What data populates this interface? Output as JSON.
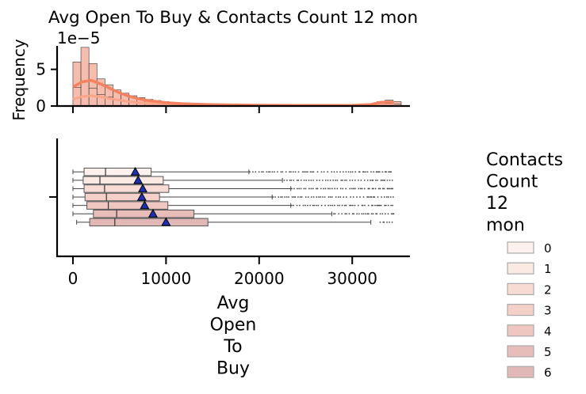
{
  "chart_data": {
    "type": "boxplot_with_histogram",
    "title": "Avg Open To Buy & Contacts Count 12 mon",
    "hist_ylabel": "Frequency",
    "hist_scale_label": "1e−5",
    "hist_yticks": [
      "0",
      "5"
    ],
    "hist_ytick_values": [
      0,
      5
    ],
    "hist_ylim": [
      0,
      8.2
    ],
    "xlabel_lines": [
      "Avg",
      "Open",
      "To",
      "Buy"
    ],
    "xlim": [
      -1700,
      36200
    ],
    "xticks": [
      0,
      10000,
      20000,
      30000
    ],
    "xtick_labels": [
      "0",
      "10000",
      "20000",
      "30000"
    ],
    "histogram": {
      "bin_width": 860,
      "total_heights_1e5": [
        6,
        8,
        5.8,
        3.7,
        2.9,
        2.2,
        1.75,
        1.4,
        1.15,
        0.9,
        0.75,
        0.6,
        0.5,
        0.42,
        0.35,
        0.3,
        0.27,
        0.24,
        0.21,
        0.19,
        0.17,
        0.15,
        0.14,
        0.13,
        0.12,
        0.11,
        0.1,
        0.1,
        0.1,
        0.09,
        0.09,
        0.09,
        0.09,
        0.09,
        0.09,
        0.1,
        0.12,
        0.13,
        0.6,
        0.8,
        0.6
      ],
      "kde_total": [
        [
          0,
          2.6
        ],
        [
          1000,
          3.3
        ],
        [
          2000,
          3.5
        ],
        [
          3000,
          3.0
        ],
        [
          4000,
          2.4
        ],
        [
          5000,
          1.8
        ],
        [
          6000,
          1.35
        ],
        [
          7000,
          1.0
        ],
        [
          8000,
          0.75
        ],
        [
          10000,
          0.45
        ],
        [
          12000,
          0.3
        ],
        [
          15000,
          0.18
        ],
        [
          20000,
          0.11
        ],
        [
          25000,
          0.09
        ],
        [
          30000,
          0.1
        ],
        [
          32000,
          0.2
        ],
        [
          33000,
          0.5
        ],
        [
          34000,
          0.55
        ],
        [
          34500,
          0.5
        ]
      ],
      "kde_group": [
        [
          0,
          0.9
        ],
        [
          1000,
          1.3
        ],
        [
          2000,
          1.4
        ],
        [
          3000,
          1.25
        ],
        [
          4000,
          1.0
        ],
        [
          6000,
          0.6
        ],
        [
          8000,
          0.35
        ],
        [
          12000,
          0.15
        ],
        [
          20000,
          0.06
        ],
        [
          30000,
          0.05
        ],
        [
          33000,
          0.15
        ],
        [
          34500,
          0.15
        ]
      ]
    },
    "legend_title": "Contacts Count 12 mon",
    "legend_title_lines": [
      "Contacts",
      "Count",
      "12",
      "mon"
    ],
    "legend_placement": "right",
    "boxes": [
      {
        "name": "0",
        "color": "#fcf1ec",
        "q1": 1200,
        "median": 3500,
        "q3": 8400,
        "whisker_low": 0,
        "whisker_high": 18900,
        "mean": 6700,
        "outlier_range": [
          19000,
          34500
        ]
      },
      {
        "name": "1",
        "color": "#fbe9e3",
        "q1": 1100,
        "median": 2900,
        "q3": 9700,
        "whisker_low": 0,
        "whisker_high": 22500,
        "mean": 7000,
        "outlier_range": [
          22700,
          34500
        ]
      },
      {
        "name": "2",
        "color": "#f8dcd4",
        "q1": 1200,
        "median": 3400,
        "q3": 10300,
        "whisker_low": 0,
        "whisker_high": 23400,
        "mean": 7500,
        "outlier_range": [
          23500,
          34500
        ]
      },
      {
        "name": "3",
        "color": "#f4d0c8",
        "q1": 1300,
        "median": 3600,
        "q3": 9300,
        "whisker_low": 0,
        "whisker_high": 21400,
        "mean": 7400,
        "outlier_range": [
          21500,
          34500
        ]
      },
      {
        "name": "4",
        "color": "#efc6c0",
        "q1": 1500,
        "median": 3800,
        "q3": 10200,
        "whisker_low": 0,
        "whisker_high": 23400,
        "mean": 7700,
        "outlier_range": [
          23500,
          34500
        ]
      },
      {
        "name": "5",
        "color": "#e8bcb8",
        "q1": 2200,
        "median": 4700,
        "q3": 13000,
        "whisker_low": 0,
        "whisker_high": 27800,
        "mean": 8600,
        "outlier_range": [
          28000,
          34500
        ]
      },
      {
        "name": "6",
        "color": "#e1b8b6",
        "q1": 1800,
        "median": 4500,
        "q3": 14500,
        "whisker_low": 400,
        "whisker_high": 32000,
        "mean": 10000,
        "outlier_range": [
          33000,
          34500
        ]
      }
    ],
    "colors": {
      "hist_bar": "#f6bcae",
      "kde_total": "#f4825f",
      "kde_group": "#f9a58a",
      "mean_marker": "#1c2fb8"
    }
  }
}
